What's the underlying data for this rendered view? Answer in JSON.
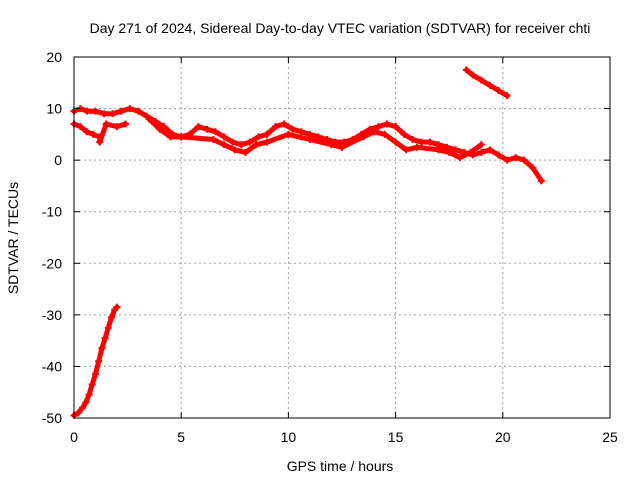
{
  "chart_data": {
    "type": "scatter",
    "title": "Day 271 of 2024, Sidereal Day-to-day VTEC variation (SDTVAR) for receiver chti",
    "xlabel": "GPS time / hours",
    "ylabel": "SDTVAR / TECUs",
    "xlim": [
      0,
      25
    ],
    "ylim": [
      -50,
      20
    ],
    "xticks": [
      0,
      5,
      10,
      15,
      20,
      25
    ],
    "yticks": [
      -50,
      -40,
      -30,
      -20,
      -10,
      0,
      10,
      20
    ],
    "grid": true,
    "marker_color": "#ff0000",
    "series": [
      {
        "name": "rising track",
        "points": [
          [
            0.0,
            -49.5
          ],
          [
            0.2,
            -49
          ],
          [
            0.4,
            -48
          ],
          [
            0.55,
            -47
          ],
          [
            0.7,
            -45.5
          ],
          [
            0.85,
            -43.5
          ],
          [
            1.0,
            -41.5
          ],
          [
            1.15,
            -39
          ],
          [
            1.3,
            -36.5
          ],
          [
            1.45,
            -34.5
          ],
          [
            1.6,
            -32.5
          ],
          [
            1.75,
            -30.5
          ],
          [
            1.9,
            -29
          ],
          [
            2.0,
            -28.5
          ]
        ]
      },
      {
        "name": "main track",
        "points": [
          [
            0.0,
            9.5
          ],
          [
            0.3,
            10
          ],
          [
            0.6,
            9.5
          ],
          [
            1.0,
            9.5
          ],
          [
            1.4,
            9
          ],
          [
            1.8,
            9
          ],
          [
            2.2,
            9.5
          ],
          [
            2.6,
            10
          ],
          [
            3.0,
            9.5
          ],
          [
            3.4,
            8.5
          ],
          [
            3.8,
            7.5
          ],
          [
            4.2,
            6.5
          ],
          [
            4.6,
            5
          ],
          [
            5.0,
            4.5
          ],
          [
            5.4,
            5
          ],
          [
            5.8,
            6.5
          ],
          [
            6.2,
            6
          ],
          [
            6.6,
            5.5
          ],
          [
            7.0,
            4.5
          ],
          [
            7.4,
            3.5
          ],
          [
            7.8,
            3
          ],
          [
            8.2,
            3.5
          ],
          [
            8.6,
            4.5
          ],
          [
            9.0,
            5
          ],
          [
            9.4,
            6.5
          ],
          [
            9.8,
            7
          ],
          [
            10.2,
            6
          ],
          [
            10.6,
            5.5
          ],
          [
            11.0,
            5
          ],
          [
            11.4,
            4.5
          ],
          [
            11.8,
            4
          ],
          [
            12.2,
            3.5
          ],
          [
            12.6,
            3.5
          ],
          [
            13.0,
            4
          ],
          [
            13.4,
            5
          ],
          [
            13.8,
            6
          ],
          [
            14.2,
            6.5
          ],
          [
            14.6,
            7
          ],
          [
            15.0,
            6.5
          ],
          [
            15.4,
            5
          ],
          [
            15.8,
            4
          ],
          [
            16.2,
            3.5
          ],
          [
            16.6,
            3.5
          ],
          [
            17.0,
            3
          ],
          [
            17.4,
            2.5
          ],
          [
            17.8,
            2
          ],
          [
            18.2,
            1.5
          ],
          [
            18.6,
            1
          ],
          [
            19.0,
            1.5
          ],
          [
            19.4,
            2
          ],
          [
            19.8,
            1
          ],
          [
            20.2,
            0
          ],
          [
            20.6,
            0.5
          ],
          [
            21.0,
            0
          ],
          [
            21.4,
            -1.5
          ],
          [
            21.8,
            -4
          ]
        ]
      },
      {
        "name": "lower early track",
        "points": [
          [
            0.0,
            7
          ],
          [
            0.3,
            6.5
          ],
          [
            0.6,
            5.5
          ],
          [
            0.9,
            5
          ],
          [
            1.2,
            4.5
          ],
          [
            1.2,
            3.5
          ],
          [
            1.5,
            7
          ],
          [
            2.0,
            6.5
          ],
          [
            2.4,
            7
          ]
        ]
      },
      {
        "name": "second main branch",
        "points": [
          [
            3.5,
            8
          ],
          [
            4.0,
            6
          ],
          [
            4.5,
            4.5
          ],
          [
            5.0,
            4.5
          ],
          [
            6.5,
            4
          ],
          [
            7.0,
            3
          ],
          [
            7.5,
            2
          ],
          [
            8.0,
            1.5
          ],
          [
            8.5,
            3
          ],
          [
            9.0,
            3.5
          ],
          [
            10.0,
            5
          ],
          [
            11.0,
            4
          ],
          [
            12.0,
            3
          ],
          [
            12.5,
            2.5
          ],
          [
            13.5,
            4.5
          ],
          [
            14.0,
            5.5
          ],
          [
            14.5,
            5
          ],
          [
            15.0,
            3.5
          ],
          [
            15.5,
            2
          ],
          [
            16.0,
            2.5
          ],
          [
            17.0,
            2
          ],
          [
            17.5,
            1.5
          ],
          [
            18.0,
            0.5
          ],
          [
            18.5,
            1.5
          ],
          [
            19.0,
            3
          ]
        ]
      },
      {
        "name": "high late track",
        "points": [
          [
            18.3,
            17.5
          ],
          [
            18.6,
            16.5
          ],
          [
            19.0,
            15.5
          ],
          [
            19.4,
            14.5
          ],
          [
            19.8,
            13.5
          ],
          [
            20.2,
            12.5
          ]
        ]
      }
    ]
  }
}
